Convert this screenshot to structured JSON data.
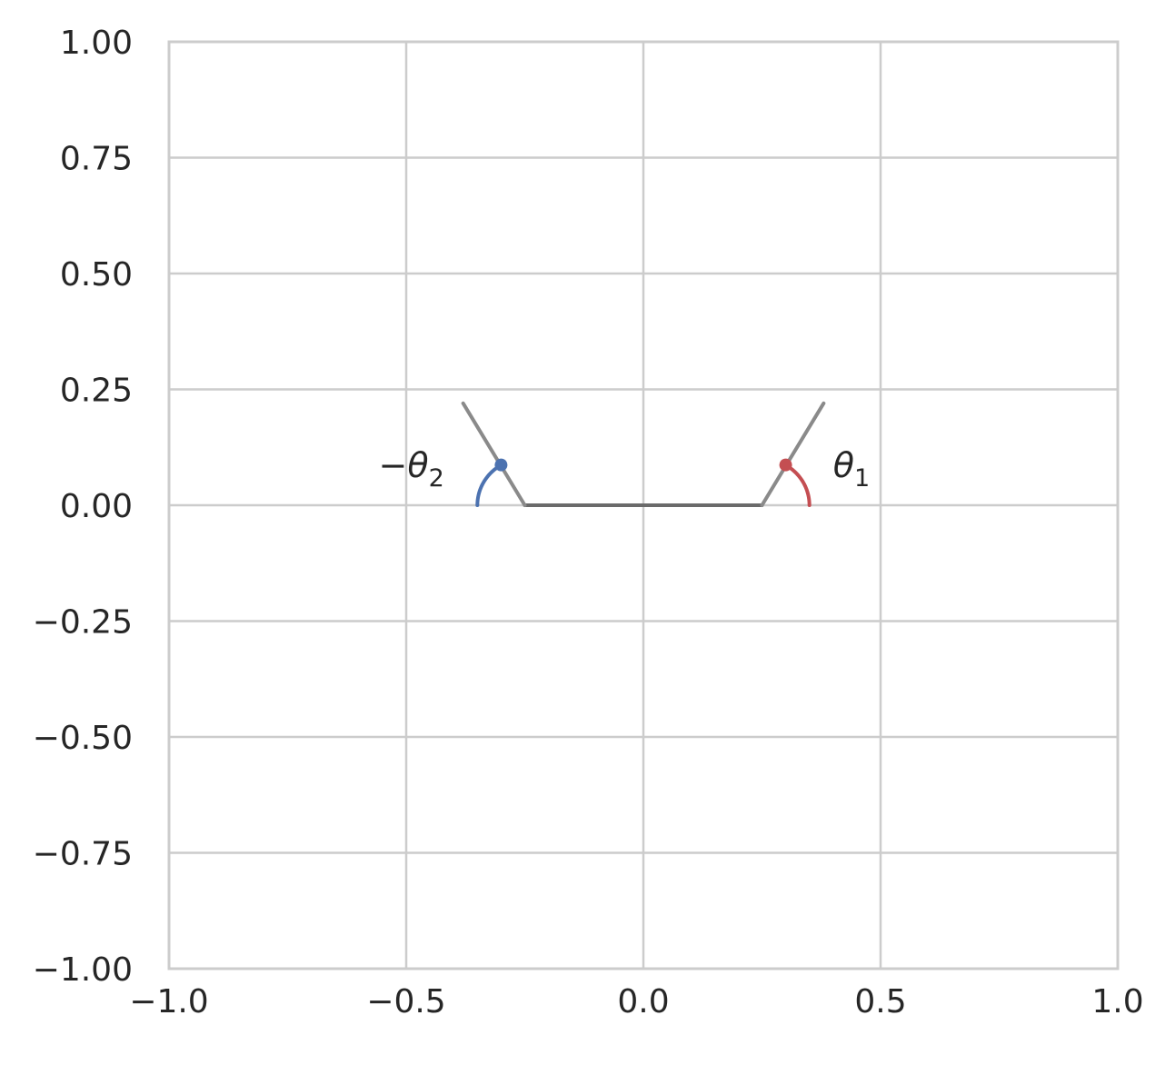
{
  "chart_data": {
    "type": "line",
    "title": "",
    "xlabel": "",
    "ylabel": "",
    "xlim": [
      -1.0,
      1.0
    ],
    "ylim": [
      -1.0,
      1.0
    ],
    "grid": true,
    "legend": "none",
    "x_ticks": [
      {
        "value": -1.0,
        "label": "−1.0"
      },
      {
        "value": -0.5,
        "label": "−0.5"
      },
      {
        "value": 0.0,
        "label": "0.0"
      },
      {
        "value": 0.5,
        "label": "0.5"
      },
      {
        "value": 1.0,
        "label": "1.0"
      }
    ],
    "y_ticks": [
      {
        "value": 1.0,
        "label": "1.00"
      },
      {
        "value": 0.75,
        "label": "0.75"
      },
      {
        "value": 0.5,
        "label": "0.50"
      },
      {
        "value": 0.25,
        "label": "0.25"
      },
      {
        "value": 0.0,
        "label": "0.00"
      },
      {
        "value": -0.25,
        "label": "−0.25"
      },
      {
        "value": -0.5,
        "label": "−0.50"
      },
      {
        "value": -0.75,
        "label": "−0.75"
      },
      {
        "value": -1.0,
        "label": "−1.00"
      }
    ],
    "series": [
      {
        "kind": "line",
        "color": "#6a6a6a",
        "x": [
          -0.25,
          0.25
        ],
        "y": [
          0.0,
          0.0
        ]
      },
      {
        "kind": "line",
        "color": "#8a8a8a",
        "x": [
          0.25,
          0.38
        ],
        "y": [
          0.0,
          0.22
        ]
      },
      {
        "kind": "line",
        "color": "#8a8a8a",
        "x": [
          -0.25,
          -0.38
        ],
        "y": [
          0.0,
          0.22
        ]
      },
      {
        "kind": "arc",
        "color": "#c44e52",
        "center": [
          0.25,
          0.0
        ],
        "radius": 0.1,
        "start_deg": 0,
        "end_deg": 60
      },
      {
        "kind": "arc",
        "color": "#4c72b0",
        "center": [
          -0.25,
          0.0
        ],
        "radius": 0.1,
        "start_deg": 180,
        "end_deg": 120
      },
      {
        "kind": "point",
        "color": "#c44e52",
        "x": 0.3,
        "y": 0.087
      },
      {
        "kind": "point",
        "color": "#4c72b0",
        "x": -0.3,
        "y": 0.087
      }
    ],
    "annotations": [
      {
        "x": 0.4,
        "y": 0.08,
        "anchor": "start",
        "minus": "",
        "symbol": "θ",
        "sub": "1"
      },
      {
        "x": -0.42,
        "y": 0.08,
        "anchor": "end",
        "minus": "−",
        "symbol": "θ",
        "sub": "2"
      }
    ]
  }
}
